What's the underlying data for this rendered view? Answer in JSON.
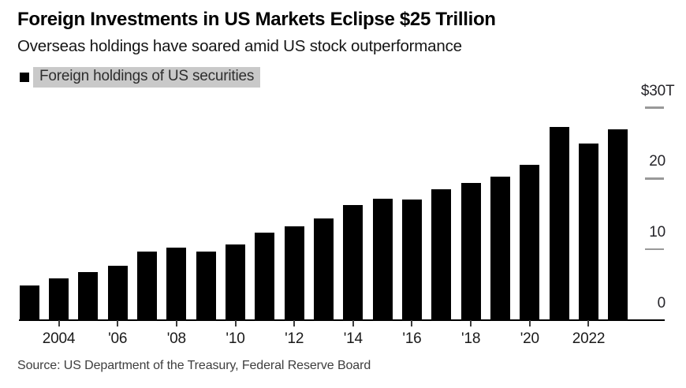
{
  "header": {
    "title": "Foreign Investments in US Markets Eclipse $25 Trillion",
    "subtitle": "Overseas holdings have soared amid US stock outperformance"
  },
  "legend": {
    "label": "Foreign holdings of US securities",
    "swatch_color": "#000000",
    "highlight_color": "#c9c9c9"
  },
  "source": "Source: US Department of the Treasury, Federal Reserve Board",
  "colors": {
    "background": "#ffffff",
    "bar": "#000000",
    "axis_line": "#000000",
    "y_tick": "#999999",
    "x_tick": "#3d3d3d"
  },
  "chart_data": {
    "type": "bar",
    "title": "Foreign Investments in US Markets Eclipse $25 Trillion",
    "subtitle": "Overseas holdings have soared amid US stock outperformance",
    "series_name": "Foreign holdings of US securities",
    "unit": "trillion USD",
    "xlabel": "",
    "ylabel": "$T",
    "ylim": [
      0,
      30
    ],
    "grid": false,
    "legend_position": "top-left",
    "axis_side": "right",
    "categories": [
      "2003",
      "2004",
      "2005",
      "2006",
      "2007",
      "2008",
      "2009",
      "2010",
      "2011",
      "2012",
      "2013",
      "2014",
      "2015",
      "2016",
      "2017",
      "2018",
      "2019",
      "2020",
      "2021",
      "2022",
      "2023"
    ],
    "values": [
      4.9,
      5.9,
      6.8,
      7.7,
      9.7,
      10.2,
      9.7,
      10.7,
      12.4,
      13.2,
      14.4,
      16.3,
      17.2,
      17.0,
      18.5,
      19.4,
      20.3,
      21.9,
      27.3,
      24.9,
      26.9
    ],
    "y_ticks": [
      {
        "value": 30,
        "prefix": "$",
        "num": "30",
        "suffix": "T"
      },
      {
        "value": 20,
        "prefix": "",
        "num": "20",
        "suffix": ""
      },
      {
        "value": 10,
        "prefix": "",
        "num": "10",
        "suffix": ""
      },
      {
        "value": 0,
        "prefix": "",
        "num": "0",
        "suffix": ""
      }
    ],
    "x_ticks": [
      {
        "year": 2004,
        "label": "2004"
      },
      {
        "year": 2006,
        "label": "'06"
      },
      {
        "year": 2008,
        "label": "'08"
      },
      {
        "year": 2010,
        "label": "'10"
      },
      {
        "year": 2012,
        "label": "'12"
      },
      {
        "year": 2014,
        "label": "'14"
      },
      {
        "year": 2016,
        "label": "'16"
      },
      {
        "year": 2018,
        "label": "'18"
      },
      {
        "year": 2020,
        "label": "'20"
      },
      {
        "year": 2022,
        "label": "2022"
      }
    ]
  }
}
